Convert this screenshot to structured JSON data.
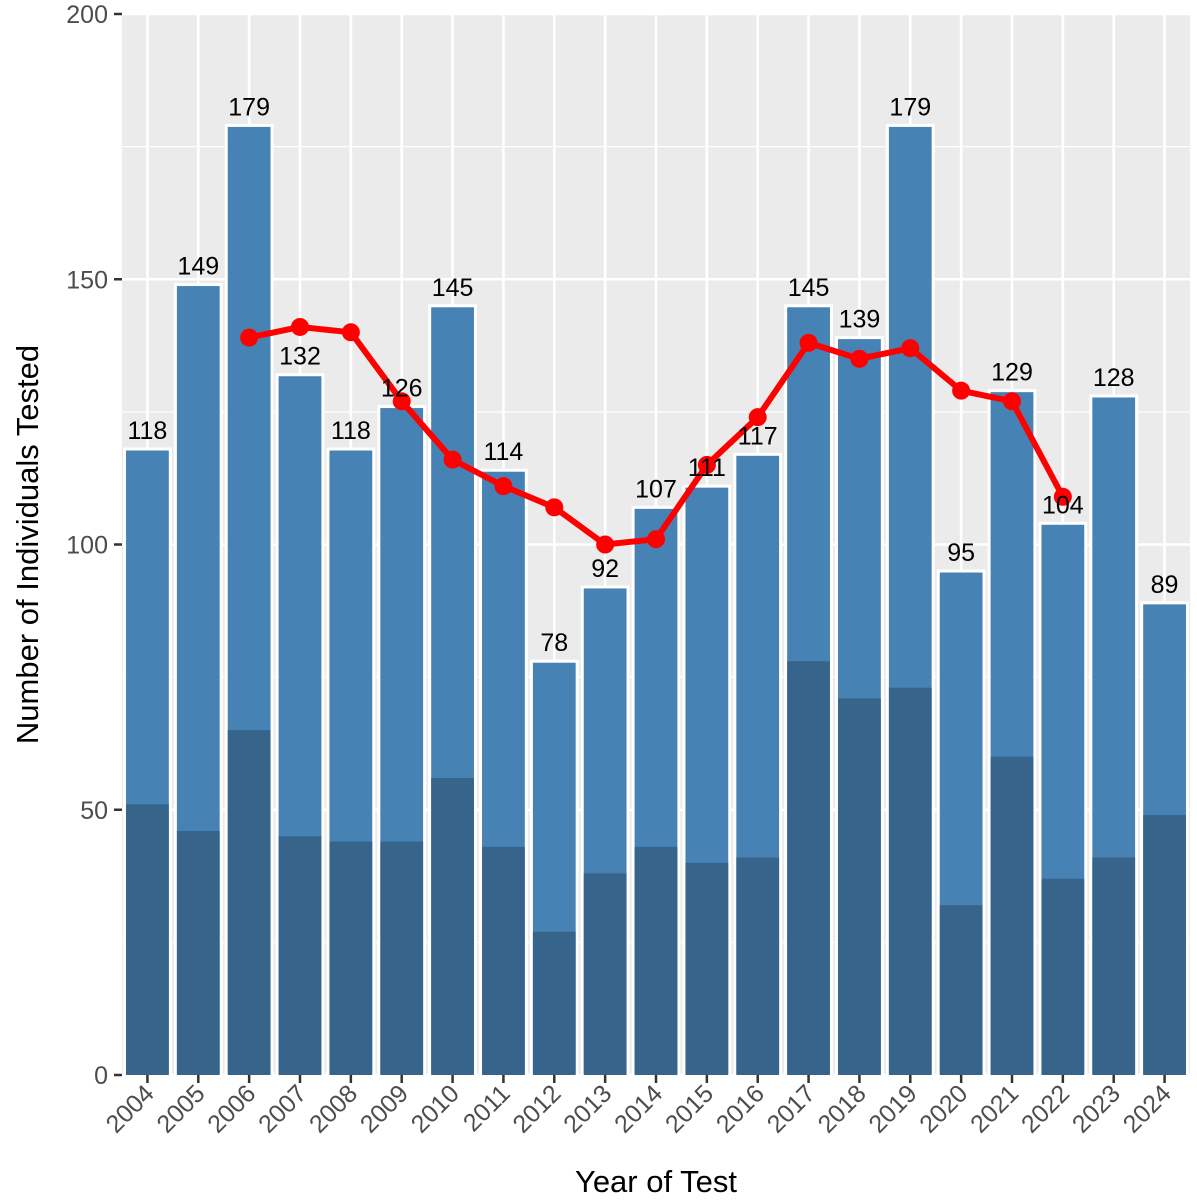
{
  "chart_data": {
    "type": "bar",
    "title": "",
    "xlabel": "Year of Test",
    "ylabel": "Number of Individuals Tested",
    "ylim": [
      0,
      200
    ],
    "yticks": [
      "0",
      "50",
      "100",
      "150",
      "200"
    ],
    "grid": true,
    "categories": [
      "2004",
      "2005",
      "2006",
      "2007",
      "2008",
      "2009",
      "2010",
      "2011",
      "2012",
      "2013",
      "2014",
      "2015",
      "2016",
      "2017",
      "2018",
      "2019",
      "2020",
      "2021",
      "2022",
      "2023",
      "2024"
    ],
    "series": [
      {
        "type": "bar",
        "values": [
          118,
          149,
          179,
          132,
          118,
          126,
          145,
          114,
          78,
          92,
          107,
          111,
          117,
          145,
          139,
          179,
          95,
          129,
          104,
          128,
          89
        ],
        "labels": [
          "118",
          "149",
          "179",
          "132",
          "118",
          "126",
          "145",
          "114",
          "78",
          "92",
          "107",
          "111",
          "117",
          "145",
          "139",
          "179",
          "95",
          "129",
          "104",
          "128",
          "89"
        ]
      },
      {
        "type": "bar",
        "values": [
          51,
          46,
          65,
          45,
          44,
          44,
          56,
          43,
          27,
          38,
          43,
          40,
          41,
          78,
          71,
          73,
          32,
          60,
          37,
          41,
          49
        ]
      },
      {
        "type": "line",
        "values": [
          null,
          null,
          139,
          141,
          140,
          127,
          116,
          111,
          107,
          100,
          101,
          115,
          124,
          138,
          135,
          137,
          129,
          127,
          109,
          null,
          null
        ]
      }
    ],
    "colors": {
      "panel": "#ebebeb",
      "grid": "#ffffff",
      "bar_total": "#4682b4",
      "bar_subset": "#36648b",
      "line": "#ff0000"
    }
  }
}
